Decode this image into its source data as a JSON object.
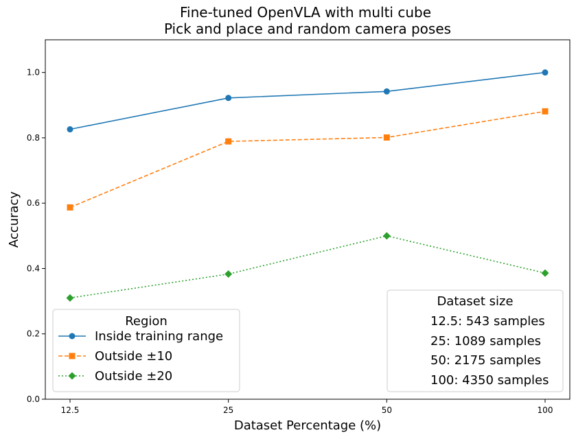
{
  "chart_data": {
    "type": "line",
    "title": "Fine-tuned OpenVLA with multi cube",
    "subtitle": "Pick and place and random camera poses",
    "xlabel": "Dataset Percentage (%)",
    "ylabel": "Accuracy",
    "categories": [
      "12.5",
      "25",
      "50",
      "100"
    ],
    "ylim": [
      0,
      1.1
    ],
    "yticks": [
      "0.0",
      "0.2",
      "0.4",
      "0.6",
      "0.8",
      "1.0"
    ],
    "grid": false,
    "series": [
      {
        "name": "Inside training range",
        "values": [
          0.826,
          0.922,
          0.942,
          1.0
        ],
        "color": "#1f77b4",
        "marker": "circle",
        "line_style": "solid"
      },
      {
        "name": "Outside ±10",
        "values": [
          0.587,
          0.789,
          0.801,
          0.881
        ],
        "color": "#ff7f0e",
        "marker": "square",
        "line_style": "dashed"
      },
      {
        "name": "Outside ±20",
        "values": [
          0.31,
          0.383,
          0.5,
          0.386
        ],
        "color": "#2ca02c",
        "marker": "diamond",
        "line_style": "dotted"
      }
    ],
    "legend": {
      "title": "Region",
      "placement": "lower-left"
    },
    "dataset_size_box": {
      "title": "Dataset size",
      "entries": [
        "12.5: 543 samples",
        "25: 1089 samples",
        "50: 2175 samples",
        "100: 4350 samples"
      ],
      "placement": "lower-right"
    }
  }
}
